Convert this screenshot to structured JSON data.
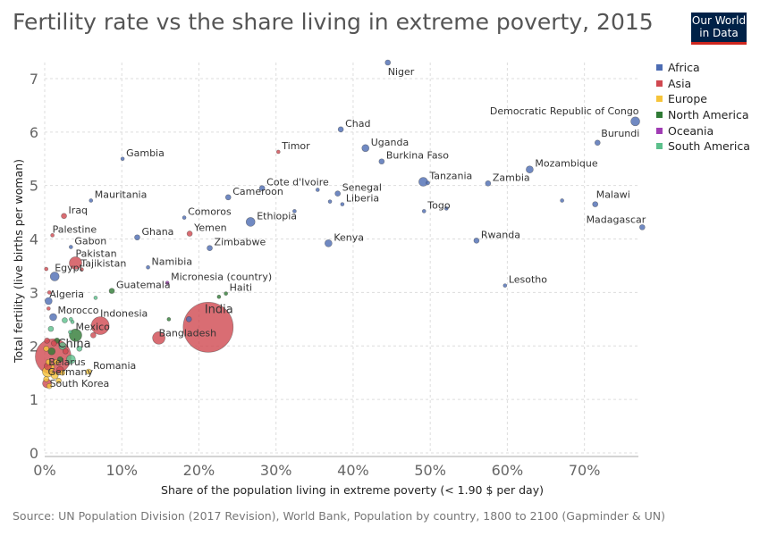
{
  "header": {
    "title": "Fertility rate vs the share living in extreme poverty, 2015",
    "logo_line1": "Our World",
    "logo_line2": "in Data"
  },
  "footer": {
    "source": "Source: UN Population Division (2017 Revision), World Bank, Population by country, 1800 to 2100 (Gapminder & UN)"
  },
  "legend": [
    {
      "name": "Africa",
      "color": "#4c6cb3"
    },
    {
      "name": "Asia",
      "color": "#d04850"
    },
    {
      "name": "Europe",
      "color": "#f6c43a"
    },
    {
      "name": "North America",
      "color": "#2f7a35"
    },
    {
      "name": "Oceania",
      "color": "#a03cb4"
    },
    {
      "name": "South America",
      "color": "#5cc08c"
    }
  ],
  "chart_data": {
    "type": "scatter",
    "title": "Fertility rate vs the share living in extreme poverty, 2015",
    "xlabel": "Share of the population living in extreme poverty (< 1.90 $ per day)",
    "ylabel": "Total fertility (live births per woman)",
    "xlim": [
      0,
      77
    ],
    "ylim": [
      0,
      7.3
    ],
    "xticks": [
      "0%",
      "10%",
      "20%",
      "30%",
      "40%",
      "50%",
      "60%",
      "70%"
    ],
    "yticks": [
      "0",
      "1",
      "2",
      "3",
      "4",
      "5",
      "6",
      "7"
    ],
    "grid": true,
    "legend_position": "right",
    "points": [
      {
        "label": "Niger",
        "region": "Africa",
        "x": 44.5,
        "y": 7.3,
        "r": 3
      },
      {
        "label": "Democratic Republic of Congo",
        "region": "Africa",
        "x": 76.6,
        "y": 6.2,
        "r": 5
      },
      {
        "label": "Chad",
        "region": "Africa",
        "x": 38.4,
        "y": 6.05,
        "r": 3
      },
      {
        "label": "Burundi",
        "region": "Africa",
        "x": 71.7,
        "y": 5.8,
        "r": 3
      },
      {
        "label": "Uganda",
        "region": "Africa",
        "x": 41.6,
        "y": 5.7,
        "r": 4
      },
      {
        "label": "Timor",
        "region": "Asia",
        "x": 30.3,
        "y": 5.63,
        "r": 2
      },
      {
        "label": "Gambia",
        "region": "Africa",
        "x": 10.1,
        "y": 5.5,
        "r": 2
      },
      {
        "label": "Burkina Faso",
        "region": "Africa",
        "x": 43.7,
        "y": 5.45,
        "r": 3
      },
      {
        "label": "Mozambique",
        "region": "Africa",
        "x": 62.9,
        "y": 5.3,
        "r": 4
      },
      {
        "label": "Tanzania",
        "region": "Africa",
        "x": 49.1,
        "y": 5.07,
        "r": 5
      },
      {
        "label": "Zambia",
        "region": "Africa",
        "x": 57.5,
        "y": 5.04,
        "r": 3
      },
      {
        "label": "Cote d'Ivoire",
        "region": "Africa",
        "x": 28.2,
        "y": 4.95,
        "r": 3
      },
      {
        "label": "Senegal",
        "region": "Africa",
        "x": 38.0,
        "y": 4.85,
        "r": 3
      },
      {
        "label": "Cameroon",
        "region": "Africa",
        "x": 23.8,
        "y": 4.78,
        "r": 3
      },
      {
        "label": "Liberia",
        "region": "Africa",
        "x": 38.6,
        "y": 4.65,
        "r": 2
      },
      {
        "label": "Mauritania",
        "region": "Africa",
        "x": 6.0,
        "y": 4.72,
        "r": 2
      },
      {
        "label": "Malawi",
        "region": "Africa",
        "x": 71.4,
        "y": 4.65,
        "r": 3
      },
      {
        "label": "Togo",
        "region": "Africa",
        "x": 49.2,
        "y": 4.52,
        "r": 2
      },
      {
        "label": "Iraq",
        "region": "Asia",
        "x": 2.5,
        "y": 4.43,
        "r": 3
      },
      {
        "label": "Comoros",
        "region": "Africa",
        "x": 18.1,
        "y": 4.4,
        "r": 2
      },
      {
        "label": "Ethiopia",
        "region": "Africa",
        "x": 26.7,
        "y": 4.32,
        "r": 5
      },
      {
        "label": "Madagascar",
        "region": "Africa",
        "x": 77.5,
        "y": 4.22,
        "r": 3
      },
      {
        "label": "Yemen",
        "region": "Asia",
        "x": 18.8,
        "y": 4.1,
        "r": 3
      },
      {
        "label": "Palestine",
        "region": "Asia",
        "x": 1.0,
        "y": 4.07,
        "r": 2
      },
      {
        "label": "Ghana",
        "region": "Africa",
        "x": 12.0,
        "y": 4.03,
        "r": 3
      },
      {
        "label": "Rwanda",
        "region": "Africa",
        "x": 56.0,
        "y": 3.97,
        "r": 3
      },
      {
        "label": "Kenya",
        "region": "Africa",
        "x": 36.8,
        "y": 3.92,
        "r": 4
      },
      {
        "label": "Gabon",
        "region": "Africa",
        "x": 3.4,
        "y": 3.85,
        "r": 2
      },
      {
        "label": "Zimbabwe",
        "region": "Africa",
        "x": 21.4,
        "y": 3.83,
        "r": 3
      },
      {
        "label": "Pakistan",
        "region": "Asia",
        "x": 4.0,
        "y": 3.55,
        "r": 7
      },
      {
        "label": "Tajikistan",
        "region": "Asia",
        "x": 4.8,
        "y": 3.43,
        "r": 2
      },
      {
        "label": "Namibia",
        "region": "Africa",
        "x": 13.4,
        "y": 3.47,
        "r": 2
      },
      {
        "label": "Egypt",
        "region": "Africa",
        "x": 1.3,
        "y": 3.3,
        "r": 5
      },
      {
        "label": "Micronesia (country)",
        "region": "Oceania",
        "x": 15.9,
        "y": 3.18,
        "r": 2
      },
      {
        "label": "Lesotho",
        "region": "Africa",
        "x": 59.7,
        "y": 3.13,
        "r": 2
      },
      {
        "label": "Guatemala",
        "region": "North America",
        "x": 8.7,
        "y": 3.03,
        "r": 3
      },
      {
        "label": "Haiti",
        "region": "North America",
        "x": 23.5,
        "y": 2.98,
        "r": 2
      },
      {
        "label": "Algeria",
        "region": "Africa",
        "x": 0.5,
        "y": 2.84,
        "r": 4
      },
      {
        "label": "India",
        "region": "Asia",
        "x": 21.2,
        "y": 2.35,
        "r": 28
      },
      {
        "label": "Morocco",
        "region": "Africa",
        "x": 1.1,
        "y": 2.54,
        "r": 4
      },
      {
        "label": "Indonesia",
        "region": "Asia",
        "x": 7.2,
        "y": 2.38,
        "r": 10
      },
      {
        "label": "Mexico",
        "region": "North America",
        "x": 4.0,
        "y": 2.2,
        "r": 7
      },
      {
        "label": "Bangladesh",
        "region": "Asia",
        "x": 14.8,
        "y": 2.15,
        "r": 7
      },
      {
        "label": "China",
        "region": "Asia",
        "x": 1.1,
        "y": 1.8,
        "r": 20
      },
      {
        "label": "Belarus",
        "region": "Europe",
        "x": 0.5,
        "y": 1.7,
        "r": 3
      },
      {
        "label": "Romania",
        "region": "Europe",
        "x": 5.7,
        "y": 1.52,
        "r": 3
      },
      {
        "label": "Germany",
        "region": "Europe",
        "x": 0.4,
        "y": 1.52,
        "r": 6
      },
      {
        "label": "South Korea",
        "region": "Asia",
        "x": 0.3,
        "y": 1.3,
        "r": 5
      }
    ],
    "unlabeled_points": [
      {
        "region": "Africa",
        "x": 67.1,
        "y": 4.72,
        "r": 2
      },
      {
        "region": "Africa",
        "x": 52.1,
        "y": 4.57,
        "r": 2
      },
      {
        "region": "Africa",
        "x": 49.7,
        "y": 5.05,
        "r": 2
      },
      {
        "region": "Africa",
        "x": 37.0,
        "y": 4.7,
        "r": 2
      },
      {
        "region": "Africa",
        "x": 35.4,
        "y": 4.92,
        "r": 2
      },
      {
        "region": "Africa",
        "x": 32.4,
        "y": 4.52,
        "r": 2
      },
      {
        "region": "Africa",
        "x": 18.7,
        "y": 2.5,
        "r": 3
      },
      {
        "region": "North America",
        "x": 16.1,
        "y": 2.5,
        "r": 2
      },
      {
        "region": "North America",
        "x": 22.6,
        "y": 2.92,
        "r": 2
      },
      {
        "region": "South America",
        "x": 6.6,
        "y": 2.9,
        "r": 2
      },
      {
        "region": "South America",
        "x": 3.6,
        "y": 2.45,
        "r": 2
      },
      {
        "region": "South America",
        "x": 3.4,
        "y": 2.5,
        "r": 2
      },
      {
        "region": "South America",
        "x": 2.6,
        "y": 2.48,
        "r": 3
      },
      {
        "region": "South America",
        "x": 0.8,
        "y": 2.32,
        "r": 3
      },
      {
        "region": "South America",
        "x": 3.3,
        "y": 2.26,
        "r": 2
      },
      {
        "region": "South America",
        "x": 2.3,
        "y": 2.0,
        "r": 4
      },
      {
        "region": "South America",
        "x": 4.5,
        "y": 1.95,
        "r": 3
      },
      {
        "region": "South America",
        "x": 3.4,
        "y": 1.75,
        "r": 5
      },
      {
        "region": "Asia",
        "x": 0.2,
        "y": 3.44,
        "r": 2
      },
      {
        "region": "Asia",
        "x": 0.5,
        "y": 2.7,
        "r": 2
      },
      {
        "region": "Asia",
        "x": 0.6,
        "y": 3.0,
        "r": 2
      },
      {
        "region": "Asia",
        "x": 6.3,
        "y": 2.2,
        "r": 3
      },
      {
        "region": "Asia",
        "x": 2.7,
        "y": 1.9,
        "r": 3
      },
      {
        "region": "Asia",
        "x": 0.3,
        "y": 2.1,
        "r": 3
      },
      {
        "region": "North America",
        "x": 1.6,
        "y": 2.1,
        "r": 3
      },
      {
        "region": "North America",
        "x": 0.9,
        "y": 1.9,
        "r": 4
      },
      {
        "region": "North America",
        "x": 2.0,
        "y": 1.75,
        "r": 3
      },
      {
        "region": "Europe",
        "x": 0.2,
        "y": 1.95,
        "r": 3
      },
      {
        "region": "Europe",
        "x": 0.8,
        "y": 1.6,
        "r": 4
      },
      {
        "region": "Europe",
        "x": 1.3,
        "y": 1.45,
        "r": 4
      },
      {
        "region": "Europe",
        "x": 0.2,
        "y": 1.38,
        "r": 3
      },
      {
        "region": "Europe",
        "x": 1.8,
        "y": 1.35,
        "r": 3
      },
      {
        "region": "Europe",
        "x": 0.6,
        "y": 1.25,
        "r": 3
      },
      {
        "region": "Europe",
        "x": 2.3,
        "y": 1.5,
        "r": 3
      },
      {
        "region": "Europe",
        "x": 1.5,
        "y": 1.7,
        "r": 3
      },
      {
        "region": "Asia",
        "x": 2.0,
        "y": 1.55,
        "r": 4
      },
      {
        "region": "Asia",
        "x": 0.4,
        "y": 1.62,
        "r": 4
      },
      {
        "region": "Asia",
        "x": 1.2,
        "y": 2.05,
        "r": 3
      }
    ]
  }
}
